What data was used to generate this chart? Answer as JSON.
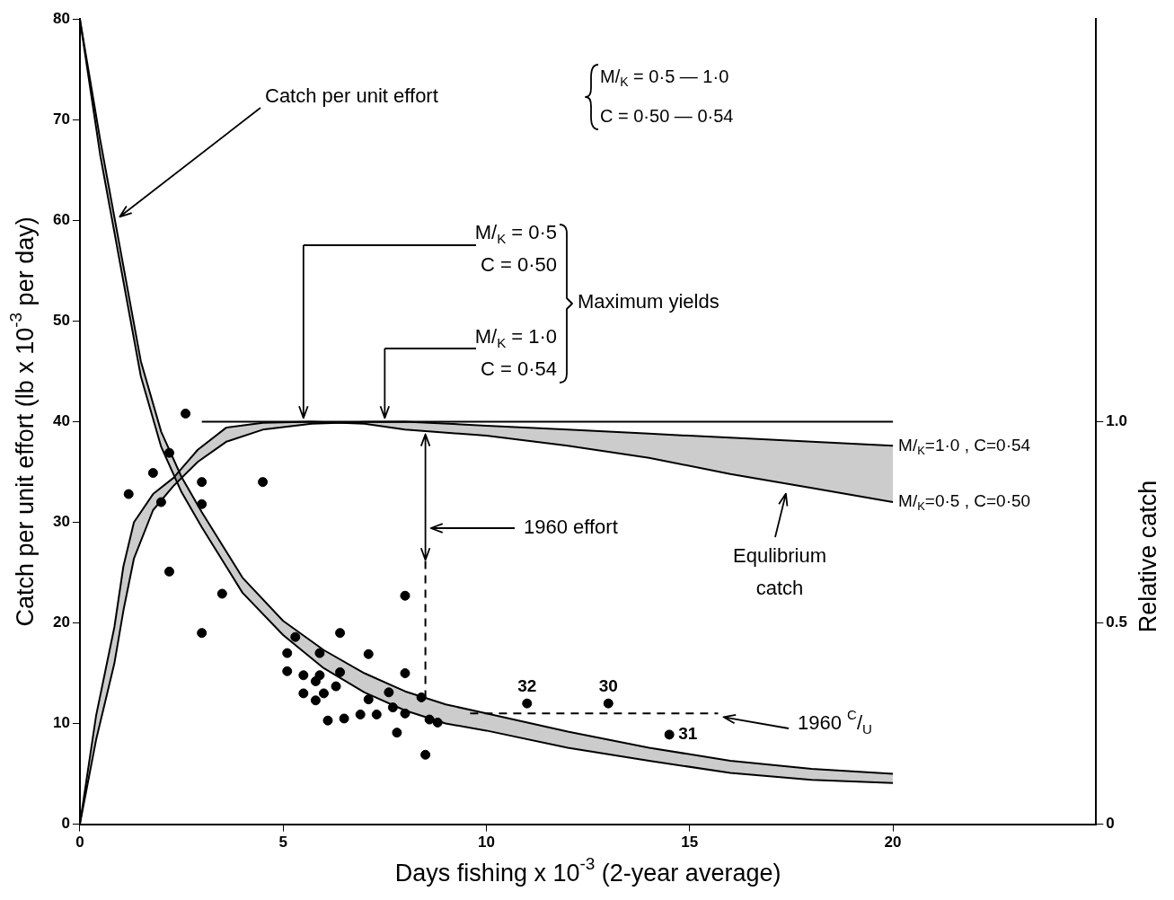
{
  "chart_data": {
    "type": "line",
    "xlabel": "Days fishing x 10$^{-3}$ (2-year average)",
    "ylabel": "Catch per unit effort (lb x 10$^{-3}$ per day)",
    "y2label": "Relative catch",
    "xlim": [
      0,
      25
    ],
    "xticks": [
      0,
      5,
      10,
      15,
      20
    ],
    "ylim": [
      0,
      80
    ],
    "yticks": [
      0,
      10,
      20,
      30,
      40,
      50,
      60,
      70,
      80
    ],
    "y2lim": [
      0,
      2
    ],
    "y2ticks": [
      0,
      {
        "value": 0.5,
        "label": "0.5"
      },
      {
        "value": 1,
        "label": "1.0"
      }
    ],
    "grid": false,
    "legend": false,
    "series": [
      {
        "color": "#000000",
        "x": [
          0,
          0.5,
          1,
          1.5,
          2,
          2.5,
          3,
          4,
          5,
          6,
          7,
          8,
          9,
          10,
          12,
          14,
          16,
          18,
          20
        ],
        "values": [
          80,
          68,
          57,
          46,
          39,
          34.5,
          31,
          24.5,
          20.2,
          17.3,
          15,
          13.2,
          11.9,
          11,
          9.2,
          7.6,
          6.3,
          5.5,
          5
        ],
        "lower": [
          80,
          66.5,
          55.5,
          44.5,
          37.5,
          33,
          29.5,
          23,
          18.8,
          15.5,
          13.1,
          11.3,
          10,
          9.3,
          7.6,
          6.3,
          5.1,
          4.4,
          4.1
        ],
        "upper": [
          80,
          68,
          57,
          46,
          39,
          34.5,
          31,
          24.5,
          20.2,
          17.3,
          15,
          13.2,
          11.9,
          11,
          9.2,
          7.6,
          6.3,
          5.5,
          5
        ]
      },
      {
        "color": "#000000",
        "x": [
          0,
          0.5,
          1,
          1.5,
          2,
          2.5,
          3,
          4,
          5,
          6,
          7,
          8,
          9,
          10,
          12,
          14,
          16,
          18,
          20
        ],
        "values": [
          80,
          66.5,
          55.5,
          44.5,
          37.5,
          33,
          29.5,
          23,
          18.8,
          15.5,
          13.1,
          11.3,
          10,
          9.3,
          7.6,
          6.3,
          5.1,
          4.4,
          4.1
        ]
      },
      {
        "axis": "y2",
        "name": "M/$_{K}$=0·5 , C=0·50",
        "color": "#000000",
        "x": [
          0,
          0.4,
          0.85,
          1.07,
          1.33,
          1.8,
          2.3,
          2.9,
          3.6,
          4.5,
          5.7,
          7,
          8,
          10,
          12,
          14,
          16,
          18,
          20
        ],
        "values": [
          0,
          0.27,
          0.49,
          0.64,
          0.75,
          0.82,
          0.86,
          0.93,
          0.985,
          0.997,
          1,
          0.995,
          0.98,
          0.965,
          0.94,
          0.91,
          0.87,
          0.835,
          0.8
        ]
      },
      {
        "axis": "y2",
        "name": "M/$_{K}$=1·0 , C=0·54",
        "color": "#000000",
        "x": [
          0,
          0.4,
          0.85,
          1.07,
          1.33,
          1.8,
          2.3,
          2.9,
          3.6,
          4.5,
          5.7,
          7,
          8,
          10,
          12,
          14,
          16,
          18,
          20
        ],
        "values": [
          0,
          0.21,
          0.4,
          0.53,
          0.66,
          0.78,
          0.84,
          0.9,
          0.95,
          0.98,
          0.995,
          0.999,
          1,
          0.99,
          0.98,
          0.97,
          0.96,
          0.95,
          0.94
        ],
        "upper": [
          0,
          0.21,
          0.4,
          0.53,
          0.66,
          0.78,
          0.84,
          0.9,
          0.95,
          0.98,
          0.995,
          0.999,
          1,
          0.99,
          0.98,
          0.97,
          0.96,
          0.95,
          0.94
        ],
        "lower": [
          0,
          0.27,
          0.49,
          0.64,
          0.75,
          0.82,
          0.86,
          0.93,
          0.985,
          0.997,
          1,
          0.995,
          0.98,
          0.965,
          0.94,
          0.91,
          0.87,
          0.835,
          0.8
        ]
      },
      {
        "axis": "y2",
        "color": "#000000",
        "x": [
          3,
          20
        ],
        "values": [
          1,
          1
        ]
      },
      {
        "line_style": "dashed",
        "color": "#000000",
        "x": [
          8.5,
          8.5
        ],
        "values": [
          12.5,
          26.5
        ]
      },
      {
        "line_style": "dashed",
        "color": "#000000",
        "x": [
          9.6,
          15.7
        ],
        "values": [
          11,
          11
        ]
      },
      {
        "type": "scatter",
        "marker": "circle",
        "color": "#000000",
        "x": [
          2.6,
          2.2,
          1.8,
          1.2,
          2,
          3,
          3,
          4.5,
          2.2,
          3.5,
          3,
          8,
          6.4,
          5.3,
          5.9,
          5.1,
          7.1,
          5.1,
          5.5,
          5.9,
          5.8,
          6.4,
          8,
          6.3,
          5.5,
          6,
          5.8,
          7.1,
          7.6,
          8.4,
          7.7,
          7.3,
          6.9,
          6.5,
          6.1,
          8,
          8.6,
          8.8,
          7.8,
          8.5
        ],
        "values": [
          40.8,
          36.9,
          34.9,
          32.8,
          32,
          34,
          31.8,
          34,
          25.1,
          22.9,
          19,
          22.7,
          19,
          18.6,
          17,
          17,
          16.9,
          15.2,
          14.8,
          14.8,
          14.2,
          15.1,
          15,
          13.7,
          13,
          13,
          12.3,
          12.4,
          13.1,
          12.6,
          11.6,
          10.9,
          10.9,
          10.5,
          10.3,
          11,
          10.4,
          10.1,
          9.1,
          6.9
        ]
      },
      {
        "type": "scatter",
        "marker": "circle",
        "color": "#000000",
        "x": [
          11,
          13,
          14.5
        ],
        "values": [
          12,
          12,
          8.9
        ]
      }
    ],
    "annotations": [
      "Catch per unit effort",
      "M/$_{K}$ = 0·5 — 1·0\nC = 0·50 — 0·54",
      "M/$_{K}$ = 0·5\nC = 0·50",
      "M/$_{K}$ = 1·0\nC = 0·54",
      "Maximum yields",
      "1960 effort",
      {
        "text": "1960 $^{C}$/$_{U}$",
        "x": 15.7,
        "y": 11
      },
      {
        "text": "Equlibrium\ncatch",
        "x": 17.5,
        "y": 33.2
      },
      {
        "text": "32",
        "x": 11,
        "y": 12
      },
      {
        "text": "30",
        "x": 13,
        "y": 12
      },
      {
        "text": "31",
        "x": 14.5,
        "y": 8.9
      }
    ]
  }
}
